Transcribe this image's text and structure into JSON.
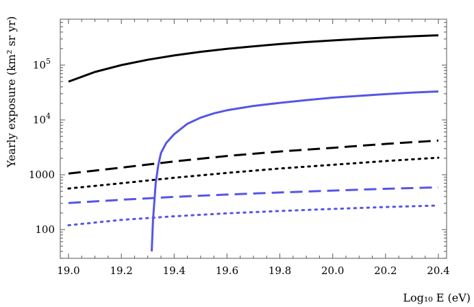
{
  "chart_data": {
    "type": "line",
    "title": "",
    "xlabel": "Log₁₀ E (eV)",
    "ylabel": "Yearly exposure  (km² sr yr)",
    "xlim": [
      19.0,
      20.4
    ],
    "ylim": [
      30,
      600000
    ],
    "yscale": "log",
    "grid": false,
    "x_ticks": [
      "19.0",
      "19.2",
      "19.4",
      "19.6",
      "19.8",
      "20.0",
      "20.2",
      "20.4"
    ],
    "x_tick_values": [
      19.0,
      19.2,
      19.4,
      19.6,
      19.8,
      20.0,
      20.2,
      20.4
    ],
    "y_ticks": [
      {
        "value": 100,
        "label": "100"
      },
      {
        "value": 1000,
        "label": "1000"
      },
      {
        "value": 10000,
        "label": "10",
        "exp": "4"
      },
      {
        "value": 100000,
        "label": "10",
        "exp": "5"
      }
    ],
    "series": [
      {
        "color": "#000000",
        "dash": "solid",
        "x": [
          19.0,
          19.1,
          19.2,
          19.3,
          19.4,
          19.5,
          19.6,
          19.7,
          19.8,
          19.9,
          20.0,
          20.1,
          20.2,
          20.3,
          20.4
        ],
        "y": [
          50000,
          75000,
          100000,
          125000,
          150000,
          175000,
          198000,
          220000,
          242000,
          263000,
          282000,
          300000,
          318000,
          335000,
          350000
        ]
      },
      {
        "color": "#5555e6",
        "dash": "solid",
        "x": [
          19.315,
          19.32,
          19.33,
          19.34,
          19.35,
          19.37,
          19.4,
          19.45,
          19.5,
          19.55,
          19.6,
          19.7,
          19.8,
          19.9,
          20.0,
          20.1,
          20.2,
          20.3,
          20.4
        ],
        "y": [
          40,
          150,
          700,
          1500,
          2500,
          3800,
          5500,
          8500,
          11000,
          13200,
          15000,
          18000,
          20500,
          23000,
          25500,
          27500,
          29500,
          31500,
          33000
        ]
      },
      {
        "color": "#000000",
        "dash": "dashed",
        "x": [
          19.0,
          19.2,
          19.4,
          19.6,
          19.8,
          20.0,
          20.2,
          20.4
        ],
        "y": [
          1050,
          1350,
          1750,
          2200,
          2650,
          3100,
          3650,
          4200
        ]
      },
      {
        "color": "#000000",
        "dash": "dotted",
        "x": [
          19.0,
          19.2,
          19.4,
          19.6,
          19.8,
          20.0,
          20.2,
          20.4
        ],
        "y": [
          560,
          700,
          880,
          1080,
          1300,
          1520,
          1780,
          2050
        ]
      },
      {
        "color": "#5555e6",
        "dash": "dashed",
        "x": [
          19.0,
          19.2,
          19.4,
          19.6,
          19.8,
          20.0,
          20.2,
          20.4
        ],
        "y": [
          305,
          350,
          395,
          435,
          475,
          515,
          555,
          590
        ]
      },
      {
        "color": "#5555e6",
        "dash": "dotted",
        "x": [
          19.0,
          19.2,
          19.4,
          19.6,
          19.8,
          20.0,
          20.2,
          20.4
        ],
        "y": [
          120,
          150,
          175,
          198,
          218,
          238,
          258,
          275
        ]
      }
    ]
  }
}
